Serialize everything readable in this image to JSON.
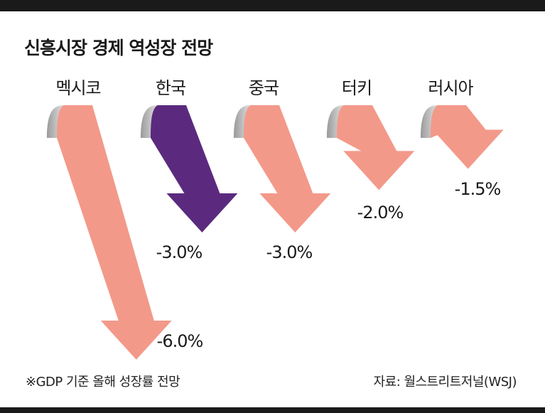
{
  "chart_data": {
    "type": "bar",
    "title": "신흥시장 경제 역성장 전망",
    "categories": [
      "멕시코",
      "한국",
      "중국",
      "터키",
      "러시아"
    ],
    "values": [
      -6.0,
      -3.0,
      -3.0,
      -2.0,
      -1.5
    ],
    "value_labels": [
      "-6.0%",
      "-3.0%",
      "-3.0%",
      "-2.0%",
      "-1.5%"
    ],
    "highlight_index": 1,
    "colors": {
      "default": "#f3998a",
      "highlight": "#5b2a7e",
      "curl": "#b9b9b9"
    },
    "note": "※GDP 기준 올해 성장률 전망",
    "source": "자료: 월스트리트저널(WSJ)"
  }
}
